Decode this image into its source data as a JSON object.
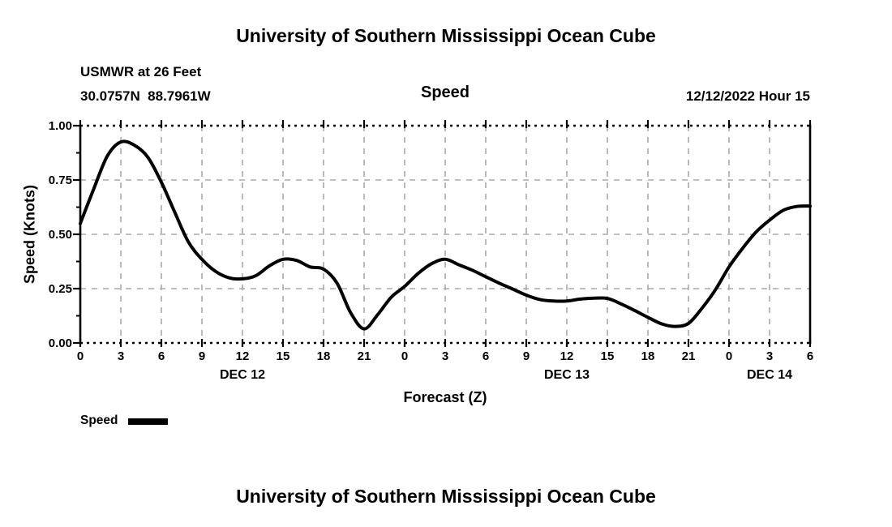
{
  "header": {
    "title": "University of Southern Mississippi Ocean Cube",
    "station_line1": "USMWR at 26 Feet",
    "station_line2": "30.0757N  88.7961W",
    "center_label": "Speed",
    "run_label": "12/12/2022 Hour 15"
  },
  "footer": {
    "title": "University of Southern Mississippi Ocean Cube"
  },
  "legend": {
    "label": "Speed",
    "swatch_color": "#000000",
    "position": "bottom-left"
  },
  "colors": {
    "background": "#ffffff",
    "curve": "#000000",
    "axis": "#000000",
    "gridline": "#aaaaaa",
    "boundary_dotted": "#000000",
    "text": "#000000"
  },
  "chart_data": {
    "type": "line",
    "title": "Speed",
    "xlabel": "Forecast (Z)",
    "ylabel": "Speed (Knots)",
    "ylim": [
      0.0,
      1.0
    ],
    "ytick_values": [
      0.0,
      0.25,
      0.5,
      0.75,
      1.0
    ],
    "ytick_labels": [
      "0.00",
      "0.25",
      "0.50",
      "0.75",
      "1.00"
    ],
    "ytick_minor_values": [
      0.125,
      0.375,
      0.625,
      0.875
    ],
    "xlim_hours": [
      0,
      54
    ],
    "xtick_hours": [
      0,
      3,
      6,
      9,
      12,
      15,
      18,
      21,
      24,
      27,
      30,
      33,
      36,
      39,
      42,
      45,
      48,
      51,
      54
    ],
    "xtick_labels": [
      "0",
      "3",
      "6",
      "9",
      "12",
      "15",
      "18",
      "21",
      "0",
      "3",
      "6",
      "9",
      "12",
      "15",
      "18",
      "21",
      "0",
      "3",
      "6"
    ],
    "day_labels": [
      {
        "label": "DEC 12",
        "center_hour": 12
      },
      {
        "label": "DEC 13",
        "center_hour": 36
      },
      {
        "label": "DEC 14",
        "center_hour": 51
      }
    ],
    "grid": true,
    "legend_position": "bottom-left",
    "x_hours": [
      0,
      1,
      2,
      3,
      4,
      5,
      6,
      7,
      8,
      9,
      10,
      11,
      12,
      13,
      14,
      15,
      16,
      17,
      18,
      19,
      20,
      21,
      22,
      23,
      24,
      25,
      26,
      27,
      28,
      29,
      30,
      31,
      32,
      33,
      34,
      35,
      36,
      37,
      38,
      39,
      40,
      41,
      42,
      43,
      44,
      45,
      46,
      47,
      48,
      49,
      50,
      51,
      52,
      53,
      54
    ],
    "series": [
      {
        "name": "Speed",
        "units": "Knots",
        "color": "#000000",
        "values": [
          0.55,
          0.71,
          0.86,
          0.925,
          0.91,
          0.855,
          0.74,
          0.6,
          0.465,
          0.385,
          0.33,
          0.3,
          0.295,
          0.31,
          0.355,
          0.385,
          0.38,
          0.35,
          0.34,
          0.275,
          0.14,
          0.065,
          0.13,
          0.21,
          0.26,
          0.32,
          0.365,
          0.385,
          0.36,
          0.335,
          0.305,
          0.275,
          0.248,
          0.22,
          0.2,
          0.193,
          0.193,
          0.202,
          0.206,
          0.205,
          0.18,
          0.15,
          0.118,
          0.088,
          0.076,
          0.09,
          0.16,
          0.245,
          0.35,
          0.435,
          0.51,
          0.565,
          0.61,
          0.628,
          0.63
        ]
      }
    ]
  }
}
